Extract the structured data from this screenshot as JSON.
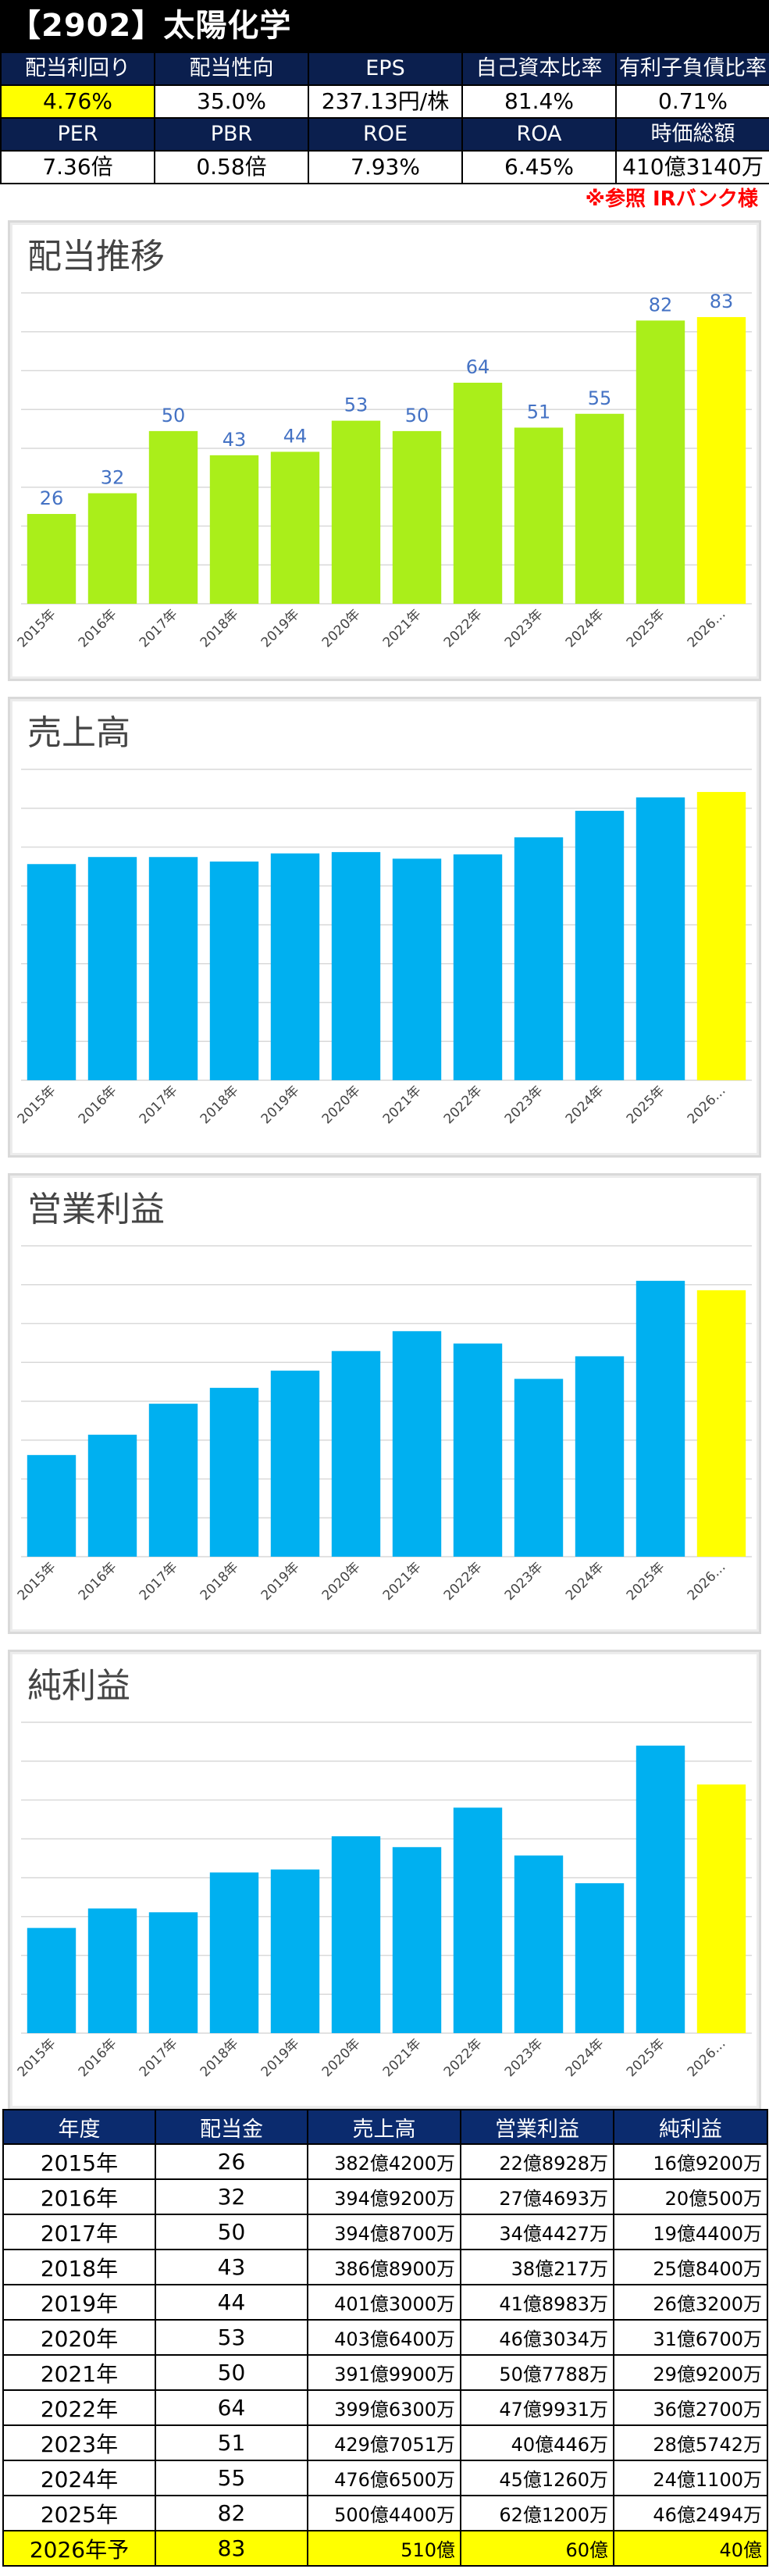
{
  "header": {
    "title": "【2902】太陽化学",
    "row1_labels": [
      "配当利回り",
      "配当性向",
      "EPS",
      "自己資本比率",
      "有利子負債比率"
    ],
    "row1_values": [
      "4.76%",
      "35.0%",
      "237.13円/株",
      "81.4%",
      "0.71%"
    ],
    "row2_labels": [
      "PER",
      "PBR",
      "ROE",
      "ROA",
      "時価総額"
    ],
    "row2_values": [
      "7.36倍",
      "0.58倍",
      "7.93%",
      "6.45%",
      "410億3140万"
    ],
    "source_note": "※参照  IRバンク様"
  },
  "colors": {
    "dividend_bar": "#aaee1a",
    "other_bar": "#00b0f0",
    "forecast_bar": "#ffff00",
    "table_header": "#0b2b6e",
    "label_blue": "#4472c4"
  },
  "chart_data": [
    {
      "type": "bar",
      "title": "配当推移",
      "categories": [
        "2015年",
        "2016年",
        "2017年",
        "2018年",
        "2019年",
        "2020年",
        "2021年",
        "2022年",
        "2023年",
        "2024年",
        "2025年",
        "2026…"
      ],
      "values": [
        26,
        32,
        50,
        43,
        44,
        53,
        50,
        64,
        51,
        55,
        82,
        83
      ],
      "data_labels": [
        "26",
        "32",
        "50",
        "43",
        "44",
        "53",
        "50",
        "64",
        "51",
        "55",
        "82",
        "83"
      ],
      "ylim": [
        0,
        90
      ],
      "grid": true
    },
    {
      "type": "bar",
      "title": "売上高",
      "categories": [
        "2015年",
        "2016年",
        "2017年",
        "2018年",
        "2019年",
        "2020年",
        "2021年",
        "2022年",
        "2023年",
        "2024年",
        "2025年",
        "2026…"
      ],
      "values": [
        382.42,
        394.92,
        394.87,
        386.89,
        401.3,
        403.64,
        391.99,
        399.63,
        429.71,
        476.65,
        500.44,
        510
      ],
      "ylim": [
        0,
        550
      ],
      "grid": true
    },
    {
      "type": "bar",
      "title": "営業利益",
      "categories": [
        "2015年",
        "2016年",
        "2017年",
        "2018年",
        "2019年",
        "2020年",
        "2021年",
        "2022年",
        "2023年",
        "2024年",
        "2025年",
        "2026…"
      ],
      "values": [
        22.8928,
        27.4693,
        34.4427,
        38.0217,
        41.8983,
        46.3034,
        50.7788,
        47.9931,
        40.0446,
        45.126,
        62.12,
        60
      ],
      "ylim": [
        0,
        70
      ],
      "grid": true
    },
    {
      "type": "bar",
      "title": "純利益",
      "categories": [
        "2015年",
        "2016年",
        "2017年",
        "2018年",
        "2019年",
        "2020年",
        "2021年",
        "2022年",
        "2023年",
        "2024年",
        "2025年",
        "2026…"
      ],
      "values": [
        16.92,
        20.05,
        19.44,
        25.84,
        26.32,
        31.67,
        29.92,
        36.27,
        28.5742,
        24.11,
        46.2494,
        40
      ],
      "ylim": [
        0,
        50
      ],
      "grid": true
    }
  ],
  "table": {
    "headers": [
      "年度",
      "配当金",
      "売上高",
      "営業利益",
      "純利益"
    ],
    "rows": [
      [
        "2015年",
        "26",
        "382億4200万",
        "22億8928万",
        "16億9200万"
      ],
      [
        "2016年",
        "32",
        "394億9200万",
        "27億4693万",
        "20億500万"
      ],
      [
        "2017年",
        "50",
        "394億8700万",
        "34億4427万",
        "19億4400万"
      ],
      [
        "2018年",
        "43",
        "386億8900万",
        "38億217万",
        "25億8400万"
      ],
      [
        "2019年",
        "44",
        "401億3000万",
        "41億8983万",
        "26億3200万"
      ],
      [
        "2020年",
        "53",
        "403億6400万",
        "46億3034万",
        "31億6700万"
      ],
      [
        "2021年",
        "50",
        "391億9900万",
        "50億7788万",
        "29億9200万"
      ],
      [
        "2022年",
        "64",
        "399億6300万",
        "47億9931万",
        "36億2700万"
      ],
      [
        "2023年",
        "51",
        "429億7051万",
        "40億446万",
        "28億5742万"
      ],
      [
        "2024年",
        "55",
        "476億6500万",
        "45億1260万",
        "24億1100万"
      ],
      [
        "2025年",
        "82",
        "500億4400万",
        "62億1200万",
        "46億2494万"
      ],
      [
        "2026年予",
        "83",
        "510億",
        "60億",
        "40億"
      ]
    ]
  }
}
